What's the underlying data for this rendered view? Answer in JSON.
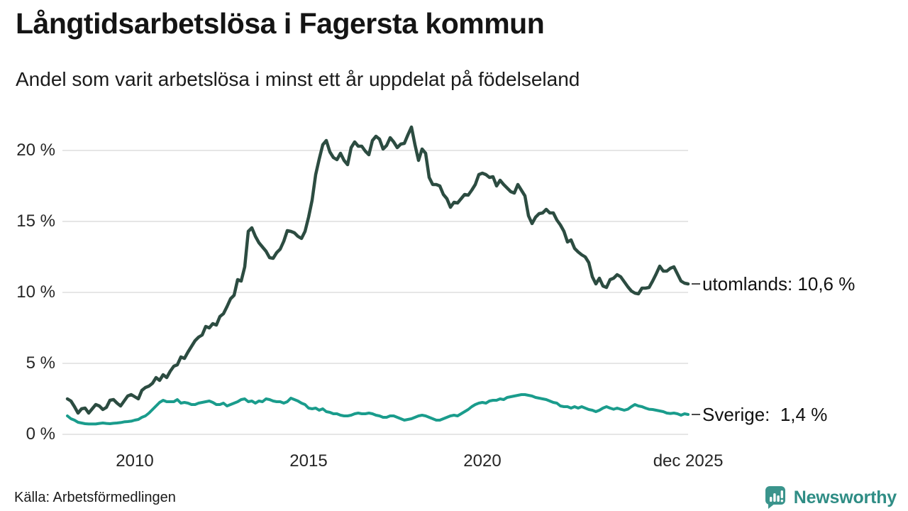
{
  "header": {
    "title": "Långtidsarbetslösa i Fagersta kommun",
    "subtitle": "Andel som varit arbetslösa i minst ett år uppdelat på födelseland"
  },
  "chart_data": {
    "type": "line",
    "title": "Långtidsarbetslösa i Fagersta kommun",
    "subtitle": "Andel som varit arbetslösa i minst ett år uppdelat på födelseland",
    "x_unit": "time (monthly)",
    "x_start_year": 2008.06,
    "x_end_year": 2025.92,
    "ylim": [
      0,
      22.5
    ],
    "grid": true,
    "grid_color": "#e3e3e3",
    "yticks": [
      {
        "value": 20,
        "label": "20 %"
      },
      {
        "value": 15,
        "label": "15 %"
      },
      {
        "value": 10,
        "label": "10 %"
      },
      {
        "value": 5,
        "label": "5 %"
      },
      {
        "value": 0,
        "label": "0 %"
      }
    ],
    "xticks": [
      {
        "year": 2010,
        "label": "2010"
      },
      {
        "year": 2015,
        "label": "2015"
      },
      {
        "year": 2020,
        "label": "2020"
      },
      {
        "year": 2025.92,
        "label": "dec 2025"
      }
    ],
    "legend_position": "end-of-line labels at right",
    "series": [
      {
        "name": "utomlands",
        "color": "#2c4c41",
        "line_width": 4.5,
        "end_label": "utomlands: 10,6 %",
        "end_value": 10.6,
        "values": [
          2.5,
          2.35,
          1.95,
          1.5,
          1.8,
          1.85,
          1.5,
          1.8,
          2.1,
          2.0,
          1.75,
          1.9,
          2.4,
          2.45,
          2.2,
          2.0,
          2.35,
          2.7,
          2.8,
          2.65,
          2.5,
          3.1,
          3.3,
          3.4,
          3.6,
          4.0,
          3.8,
          4.2,
          4.0,
          4.45,
          4.8,
          4.9,
          5.45,
          5.35,
          5.8,
          6.2,
          6.6,
          6.85,
          7.0,
          7.6,
          7.5,
          7.8,
          7.7,
          8.3,
          8.5,
          9.0,
          9.55,
          9.8,
          10.9,
          10.8,
          11.8,
          14.3,
          14.55,
          13.95,
          13.5,
          13.2,
          12.9,
          12.45,
          12.4,
          12.8,
          13.05,
          13.6,
          14.35,
          14.3,
          14.2,
          13.95,
          13.8,
          14.3,
          15.3,
          16.5,
          18.3,
          19.4,
          20.4,
          20.7,
          19.9,
          19.5,
          19.35,
          19.8,
          19.3,
          19.0,
          20.2,
          20.6,
          20.3,
          20.3,
          19.95,
          19.7,
          20.7,
          21.0,
          20.8,
          20.1,
          20.35,
          20.9,
          20.6,
          20.2,
          20.45,
          20.5,
          21.1,
          21.65,
          20.4,
          19.3,
          20.1,
          19.8,
          18.1,
          17.6,
          17.6,
          17.5,
          16.9,
          16.6,
          16.0,
          16.35,
          16.3,
          16.6,
          16.9,
          16.85,
          17.2,
          17.6,
          18.3,
          18.4,
          18.3,
          18.1,
          18.15,
          17.5,
          17.9,
          17.6,
          17.35,
          17.1,
          17.0,
          17.6,
          17.2,
          16.8,
          15.4,
          14.85,
          15.3,
          15.55,
          15.6,
          15.85,
          15.6,
          15.6,
          15.1,
          14.75,
          14.3,
          13.55,
          13.7,
          13.1,
          12.85,
          12.65,
          12.5,
          12.1,
          11.1,
          10.6,
          11.0,
          10.45,
          10.35,
          10.9,
          11.0,
          11.25,
          11.1,
          10.75,
          10.4,
          10.1,
          9.95,
          9.9,
          10.3,
          10.3,
          10.35,
          10.8,
          11.3,
          11.85,
          11.5,
          11.5,
          11.7,
          11.8,
          11.3,
          10.8,
          10.65,
          10.6
        ]
      },
      {
        "name": "Sverige",
        "color": "#1a9c8c",
        "line_width": 4,
        "end_label": "Sverige:  1,4 %",
        "end_value": 1.4,
        "values": [
          1.3,
          1.1,
          1.0,
          0.85,
          0.8,
          0.75,
          0.73,
          0.73,
          0.73,
          0.77,
          0.8,
          0.77,
          0.75,
          0.78,
          0.8,
          0.83,
          0.88,
          0.9,
          0.93,
          1.0,
          1.05,
          1.2,
          1.3,
          1.5,
          1.75,
          2.0,
          2.25,
          2.4,
          2.3,
          2.3,
          2.3,
          2.45,
          2.2,
          2.25,
          2.2,
          2.1,
          2.1,
          2.2,
          2.25,
          2.3,
          2.35,
          2.25,
          2.1,
          2.1,
          2.2,
          2.0,
          2.1,
          2.2,
          2.3,
          2.45,
          2.5,
          2.3,
          2.35,
          2.2,
          2.35,
          2.3,
          2.5,
          2.45,
          2.35,
          2.3,
          2.3,
          2.2,
          2.3,
          2.55,
          2.45,
          2.35,
          2.2,
          2.1,
          1.85,
          1.8,
          1.85,
          1.7,
          1.8,
          1.6,
          1.55,
          1.45,
          1.45,
          1.35,
          1.3,
          1.3,
          1.35,
          1.45,
          1.5,
          1.45,
          1.45,
          1.5,
          1.45,
          1.35,
          1.3,
          1.2,
          1.2,
          1.3,
          1.3,
          1.2,
          1.1,
          1.0,
          1.05,
          1.1,
          1.2,
          1.3,
          1.35,
          1.3,
          1.2,
          1.1,
          1.0,
          1.0,
          1.1,
          1.2,
          1.3,
          1.35,
          1.3,
          1.45,
          1.6,
          1.75,
          1.95,
          2.1,
          2.2,
          2.25,
          2.2,
          2.35,
          2.4,
          2.4,
          2.5,
          2.45,
          2.6,
          2.65,
          2.7,
          2.75,
          2.8,
          2.8,
          2.75,
          2.7,
          2.6,
          2.55,
          2.5,
          2.45,
          2.35,
          2.25,
          2.2,
          2.0,
          1.95,
          1.95,
          1.85,
          1.95,
          1.85,
          1.95,
          1.85,
          1.75,
          1.7,
          1.6,
          1.7,
          1.85,
          1.95,
          1.85,
          1.77,
          1.85,
          1.77,
          1.7,
          1.77,
          1.95,
          2.1,
          2.0,
          1.95,
          1.85,
          1.77,
          1.75,
          1.7,
          1.65,
          1.6,
          1.5,
          1.47,
          1.5,
          1.45,
          1.35,
          1.45,
          1.4
        ]
      }
    ]
  },
  "source": {
    "label": "Källa: Arbetsförmedlingen"
  },
  "branding": {
    "name": "Newsworthy",
    "color": "#2f8d85",
    "icon_color": "#3a948c"
  }
}
